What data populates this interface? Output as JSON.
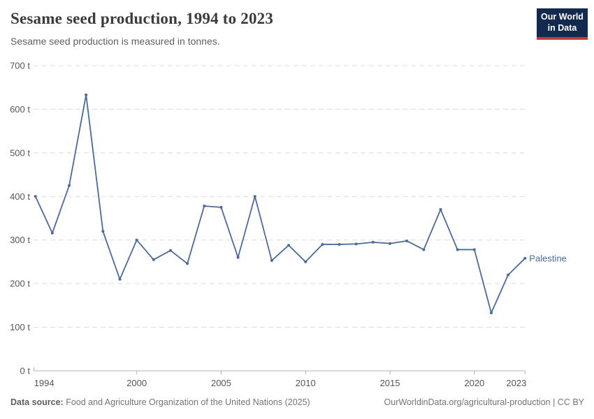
{
  "header": {
    "title": "Sesame seed production, 1994 to 2023",
    "subtitle": "Sesame seed production is measured in tonnes.",
    "logo": {
      "line1": "Our World",
      "line2": "in Data",
      "bg_color": "#13294e",
      "stripe_color": "#c53a33"
    }
  },
  "chart_data": {
    "type": "line",
    "title": "Sesame seed production, 1994 to 2023",
    "ylabel": "",
    "xlabel": "",
    "unit": "t",
    "grid": "horizontal-dashed",
    "legend_position": "end-of-line",
    "xlim": [
      1994,
      2023
    ],
    "ylim": [
      0,
      700
    ],
    "y_ticks": [
      0,
      100,
      200,
      300,
      400,
      500,
      600,
      700
    ],
    "x_ticks": [
      1994,
      2000,
      2005,
      2010,
      2015,
      2020,
      2023
    ],
    "x": [
      1994,
      1995,
      1996,
      1997,
      1998,
      1999,
      2000,
      2001,
      2002,
      2003,
      2004,
      2005,
      2006,
      2007,
      2008,
      2009,
      2010,
      2011,
      2012,
      2013,
      2014,
      2015,
      2016,
      2017,
      2018,
      2019,
      2020,
      2021,
      2022,
      2023
    ],
    "series": [
      {
        "name": "Palestine",
        "color": "#4C6A9C",
        "values": [
          400,
          316,
          425,
          633,
          320,
          210,
          300,
          255,
          276,
          246,
          378,
          375,
          260,
          400,
          253,
          288,
          250,
          290,
          290,
          291,
          295,
          292,
          298,
          278,
          370,
          278,
          278,
          133,
          220,
          258
        ]
      }
    ],
    "colors": {
      "grid": "#dcdcdc",
      "axis": "#b3b3b3",
      "tick_label": "#565656"
    }
  },
  "footer": {
    "source_label": "Data source:",
    "source_text": " Food and Agriculture Organization of the United Nations (2025)",
    "link": "OurWorldinData.org/agricultural-production | CC BY"
  }
}
